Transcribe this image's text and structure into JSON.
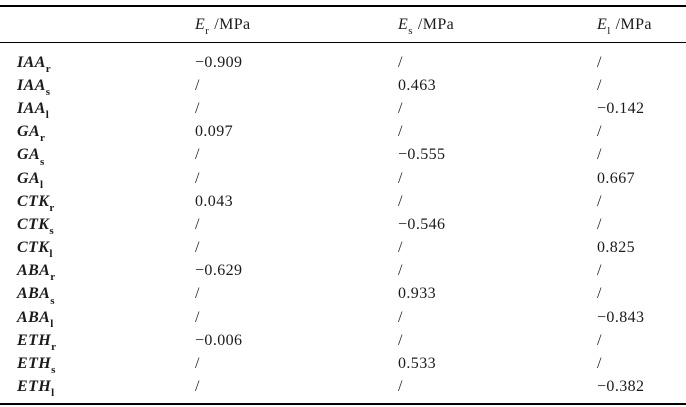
{
  "table": {
    "corner_label": "",
    "columns": [
      {
        "symbol": "E",
        "sub": "r",
        "unit": "/MPa"
      },
      {
        "symbol": "E",
        "sub": "s",
        "unit": "/MPa"
      },
      {
        "symbol": "E",
        "sub": "l",
        "unit": "/MPa"
      }
    ],
    "rows": [
      {
        "name": "IAA",
        "sub": "r",
        "values": [
          "−0.909",
          "/",
          "/"
        ]
      },
      {
        "name": "IAA",
        "sub": "s",
        "values": [
          "/",
          "0.463",
          "/"
        ]
      },
      {
        "name": "IAA",
        "sub": "l",
        "values": [
          "/",
          "/",
          "−0.142"
        ]
      },
      {
        "name": "GA",
        "sub": "r",
        "values": [
          "0.097",
          "/",
          "/"
        ]
      },
      {
        "name": "GA",
        "sub": "s",
        "values": [
          "/",
          "−0.555",
          "/"
        ]
      },
      {
        "name": "GA",
        "sub": "l",
        "values": [
          "/",
          "/",
          "0.667"
        ]
      },
      {
        "name": "CTK",
        "sub": "r",
        "values": [
          "0.043",
          "/",
          "/"
        ]
      },
      {
        "name": "CTK",
        "sub": "s",
        "values": [
          "/",
          "−0.546",
          "/"
        ]
      },
      {
        "name": "CTK",
        "sub": "l",
        "values": [
          "/",
          "/",
          "0.825"
        ]
      },
      {
        "name": "ABA",
        "sub": "r",
        "values": [
          "−0.629",
          "/",
          "/"
        ]
      },
      {
        "name": "ABA",
        "sub": "s",
        "values": [
          "/",
          "0.933",
          "/"
        ]
      },
      {
        "name": "ABA",
        "sub": "l",
        "values": [
          "/",
          "/",
          "−0.843"
        ]
      },
      {
        "name": "ETH",
        "sub": "r",
        "values": [
          "−0.006",
          "/",
          "/"
        ]
      },
      {
        "name": "ETH",
        "sub": "s",
        "values": [
          "/",
          "0.533",
          "/"
        ]
      },
      {
        "name": "ETH",
        "sub": "l",
        "values": [
          "/",
          "/",
          "−0.382"
        ]
      }
    ],
    "colors": {
      "text": "#1b1b1b",
      "rule": "#000000",
      "background": "#ffffff"
    }
  }
}
